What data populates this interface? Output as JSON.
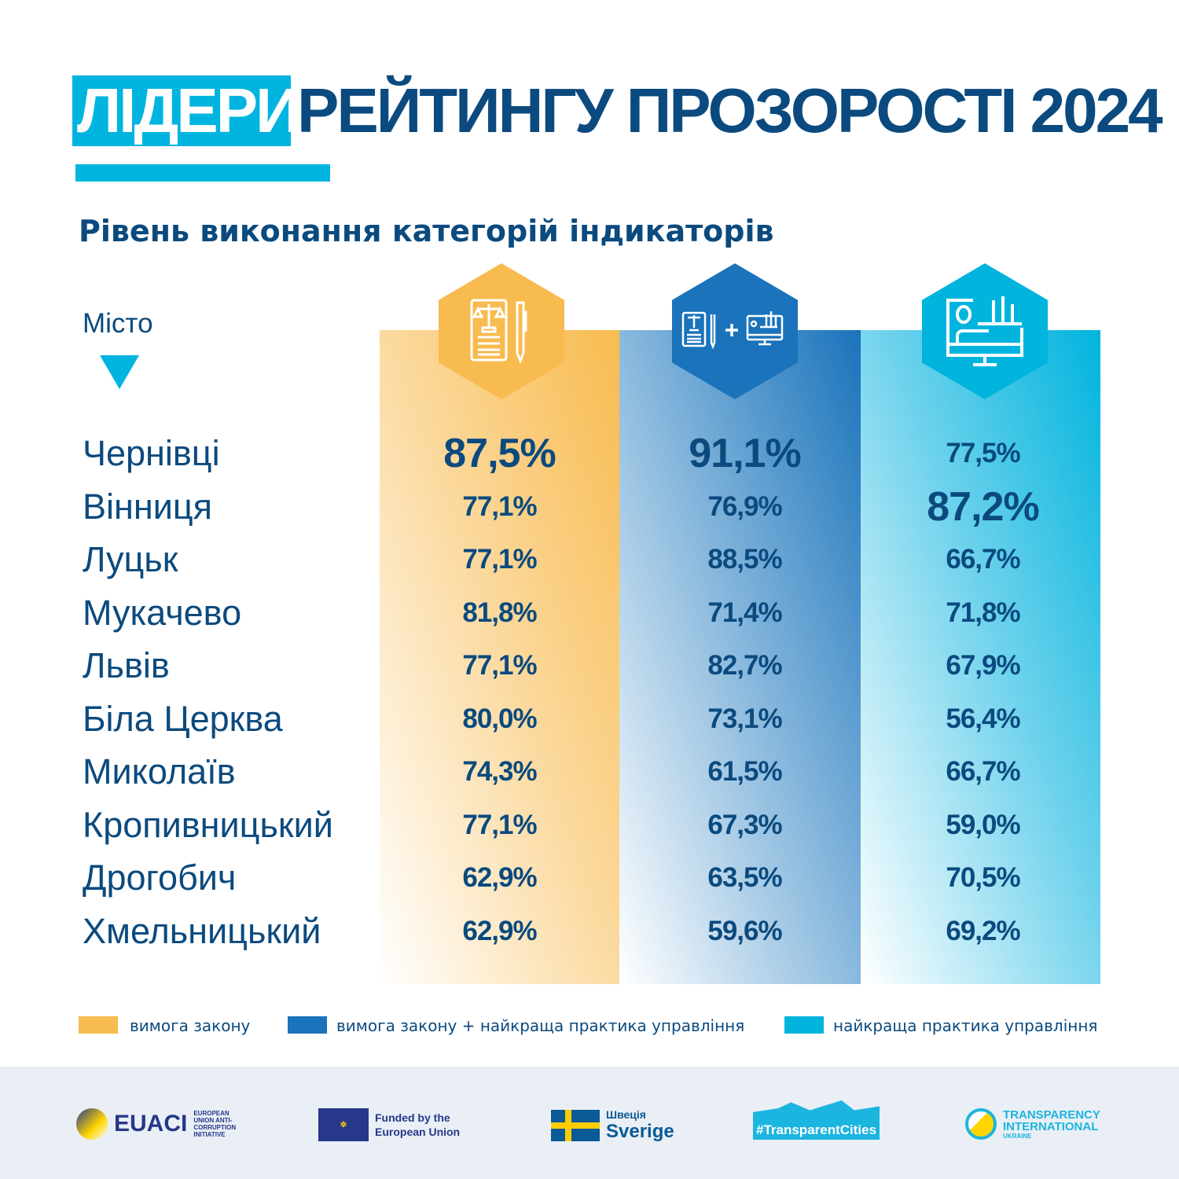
{
  "header": {
    "title_highlight": "ЛІДЕРИ",
    "title_rest": "РЕЙТИНГУ ПРОЗОРОСТІ 2024",
    "subtitle": "Рівень виконання категорій індикаторів",
    "city_label": "Місто"
  },
  "colors": {
    "accent": "#00b4e0",
    "text": "#0b4a7e",
    "law": "#f8bb4f",
    "law_plus_practice": "#1a73bb",
    "practice": "#00b4de"
  },
  "chart_data": {
    "type": "table",
    "columns": [
      {
        "icon": "law-document-pen-icon",
        "legend": "вимога закону",
        "color": "#f8bb4f"
      },
      {
        "icon": "law-plus-monitor-icon",
        "legend": "вимога закону + найкраща практика управління",
        "color": "#1a73bb"
      },
      {
        "icon": "monitor-chart-icon",
        "legend": "найкраща практика управління",
        "color": "#00b4de"
      }
    ],
    "rows": [
      {
        "city": "Чернівці",
        "values": [
          "87,5%",
          "91,1%",
          "77,5%"
        ],
        "highlight": [
          true,
          true,
          false
        ]
      },
      {
        "city": "Вінниця",
        "values": [
          "77,1%",
          "76,9%",
          "87,2%"
        ],
        "highlight": [
          false,
          false,
          true
        ]
      },
      {
        "city": "Луцьк",
        "values": [
          "77,1%",
          "88,5%",
          "66,7%"
        ],
        "highlight": [
          false,
          false,
          false
        ]
      },
      {
        "city": "Мукачево",
        "values": [
          "81,8%",
          "71,4%",
          "71,8%"
        ],
        "highlight": [
          false,
          false,
          false
        ]
      },
      {
        "city": "Львів",
        "values": [
          "77,1%",
          "82,7%",
          "67,9%"
        ],
        "highlight": [
          false,
          false,
          false
        ]
      },
      {
        "city": "Біла Церква",
        "values": [
          "80,0%",
          "73,1%",
          "56,4%"
        ],
        "highlight": [
          false,
          false,
          false
        ]
      },
      {
        "city": "Миколаїв",
        "values": [
          "74,3%",
          "61,5%",
          "66,7%"
        ],
        "highlight": [
          false,
          false,
          false
        ]
      },
      {
        "city": "Кропивницький",
        "values": [
          "77,1%",
          "67,3%",
          "59,0%"
        ],
        "highlight": [
          false,
          false,
          false
        ]
      },
      {
        "city": "Дрогобич",
        "values": [
          "62,9%",
          "63,5%",
          "70,5%"
        ],
        "highlight": [
          false,
          false,
          false
        ]
      },
      {
        "city": "Хмельницький",
        "values": [
          "62,9%",
          "59,6%",
          "69,2%"
        ],
        "highlight": [
          false,
          false,
          false
        ]
      }
    ]
  },
  "footer": {
    "logos": [
      {
        "name": "EUACI",
        "sub": "EUROPEAN UNION ANTI-CORRUPTION INITIATIVE"
      },
      {
        "name": "Funded by the European Union"
      },
      {
        "name": "Швеція",
        "sub": "Sverige"
      },
      {
        "name": "#TransparentCities"
      },
      {
        "name": "TRANSPARENCY INTERNATIONAL",
        "sub": "UKRAINE"
      }
    ]
  }
}
